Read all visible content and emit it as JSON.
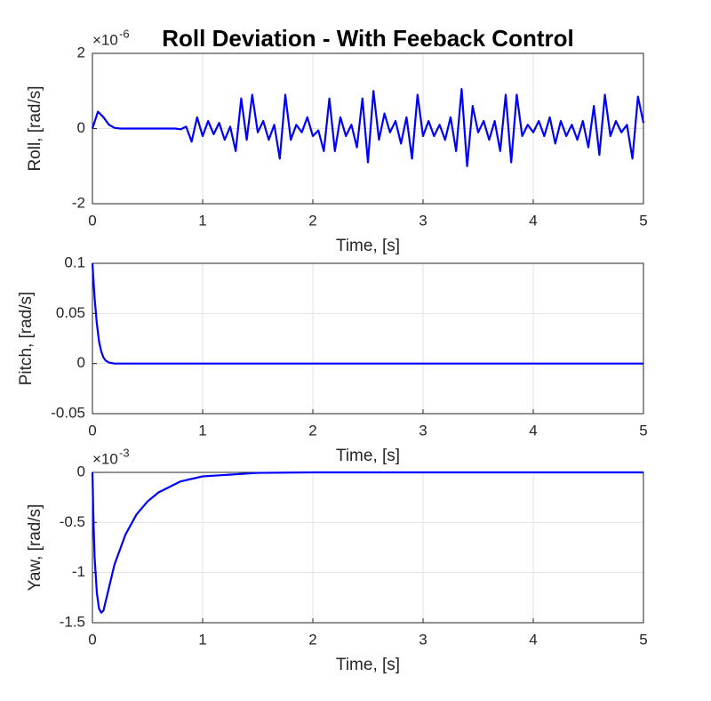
{
  "chart_data": [
    {
      "type": "line",
      "title": "Roll Deviation - With Feeback Control",
      "xlabel": "Time, [s]",
      "ylabel": "Roll, [rad/s]",
      "y_multiplier_base": "×10",
      "y_multiplier_exponent": "-6",
      "xlim": [
        0,
        5
      ],
      "xticks": [
        0,
        1,
        2,
        3,
        4,
        5
      ],
      "ylim": [
        -2,
        2
      ],
      "yticks": [
        -2,
        0,
        2
      ],
      "grid": true,
      "x": [
        0,
        0.05,
        0.1,
        0.15,
        0.2,
        0.25,
        0.3,
        0.35,
        0.4,
        0.45,
        0.5,
        0.55,
        0.6,
        0.65,
        0.7,
        0.75,
        0.8,
        0.85,
        0.9,
        0.95,
        1,
        1.05,
        1.1,
        1.15,
        1.2,
        1.25,
        1.3,
        1.35,
        1.4,
        1.45,
        1.5,
        1.55,
        1.6,
        1.65,
        1.7,
        1.75,
        1.8,
        1.85,
        1.9,
        1.95,
        2,
        2.05,
        2.1,
        2.15,
        2.2,
        2.25,
        2.3,
        2.35,
        2.4,
        2.45,
        2.5,
        2.55,
        2.6,
        2.65,
        2.7,
        2.75,
        2.8,
        2.85,
        2.9,
        2.95,
        3,
        3.05,
        3.1,
        3.15,
        3.2,
        3.25,
        3.3,
        3.35,
        3.4,
        3.45,
        3.5,
        3.55,
        3.6,
        3.65,
        3.7,
        3.75,
        3.8,
        3.85,
        3.9,
        3.95,
        4,
        4.05,
        4.1,
        4.15,
        4.2,
        4.25,
        4.3,
        4.35,
        4.4,
        4.45,
        4.5,
        4.55,
        4.6,
        4.65,
        4.7,
        4.75,
        4.8,
        4.85,
        4.9,
        4.95,
        5
      ],
      "series": [
        {
          "color": "#0000ff",
          "values": [
            0,
            0.45,
            0.3,
            0.1,
            0.02,
            0,
            0,
            0,
            0,
            0,
            0,
            0,
            0,
            0,
            0,
            0,
            -0.02,
            0.05,
            -0.35,
            0.3,
            -0.2,
            0.2,
            -0.15,
            0.15,
            -0.3,
            0.05,
            -0.6,
            0.8,
            -0.3,
            0.9,
            -0.1,
            0.2,
            -0.3,
            0.1,
            -0.8,
            0.9,
            -0.3,
            0.1,
            -0.1,
            0.3,
            -0.2,
            -0.05,
            -0.6,
            0.8,
            -0.6,
            0.3,
            -0.2,
            0.1,
            -0.5,
            0.8,
            -0.9,
            1.0,
            -0.3,
            0.4,
            -0.1,
            0.2,
            -0.4,
            0.3,
            -0.8,
            0.9,
            -0.2,
            0.2,
            -0.2,
            0.1,
            -0.3,
            0.3,
            -0.6,
            1.05,
            -1.0,
            0.6,
            -0.1,
            0.2,
            -0.3,
            0.2,
            -0.6,
            0.9,
            -0.9,
            0.9,
            -0.2,
            0.1,
            -0.1,
            0.2,
            -0.2,
            0.3,
            -0.4,
            0.2,
            -0.2,
            0.1,
            -0.3,
            0.2,
            -0.5,
            0.6,
            -0.7,
            0.9,
            -0.2,
            0.2,
            -0.1,
            0.1,
            -0.8,
            0.85,
            0.15
          ]
        }
      ]
    },
    {
      "type": "line",
      "xlabel": "Time, [s]",
      "ylabel": "Pitch, [rad/s]",
      "xlim": [
        0,
        5
      ],
      "xticks": [
        0,
        1,
        2,
        3,
        4,
        5
      ],
      "ylim": [
        -0.05,
        0.1
      ],
      "yticks": [
        -0.05,
        0,
        0.05,
        0.1
      ],
      "grid": true,
      "x": [
        0,
        0.02,
        0.04,
        0.06,
        0.08,
        0.1,
        0.12,
        0.15,
        0.2,
        0.3,
        5
      ],
      "series": [
        {
          "color": "#0000ff",
          "values": [
            0.1,
            0.065,
            0.04,
            0.022,
            0.012,
            0.006,
            0.003,
            0.001,
            0,
            0,
            0
          ]
        }
      ]
    },
    {
      "type": "line",
      "xlabel": "Time, [s]",
      "ylabel": "Yaw, [rad/s]",
      "y_multiplier_base": "×10",
      "y_multiplier_exponent": "-3",
      "xlim": [
        0,
        5
      ],
      "xticks": [
        0,
        1,
        2,
        3,
        4,
        5
      ],
      "ylim": [
        -1.5,
        0
      ],
      "yticks": [
        -1.5,
        -1,
        -0.5,
        0
      ],
      "grid": true,
      "x": [
        0,
        0.01,
        0.02,
        0.04,
        0.06,
        0.08,
        0.1,
        0.15,
        0.2,
        0.3,
        0.4,
        0.5,
        0.6,
        0.8,
        1,
        1.5,
        2,
        5
      ],
      "series": [
        {
          "color": "#0000ff",
          "values": [
            0,
            -0.5,
            -0.85,
            -1.2,
            -1.36,
            -1.4,
            -1.38,
            -1.15,
            -0.92,
            -0.62,
            -0.42,
            -0.29,
            -0.2,
            -0.09,
            -0.04,
            -0.005,
            0,
            0
          ]
        }
      ]
    }
  ]
}
